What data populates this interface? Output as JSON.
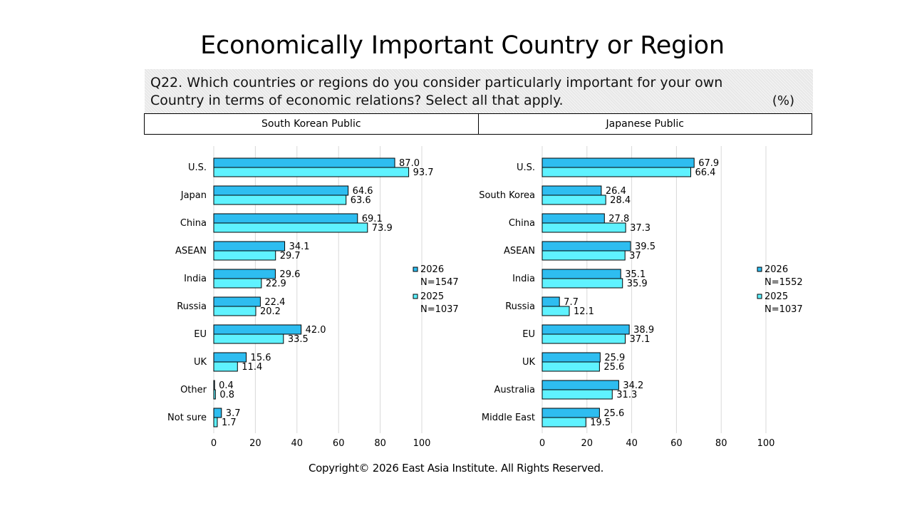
{
  "title": "Economically Important Country or Region",
  "question": {
    "text": "Q22. Which countries or regions do you consider particularly important for your own Country in terms of economic relations? Select all that apply.",
    "unit": "(%)"
  },
  "headers": [
    "South Korean Public",
    "Japanese Public"
  ],
  "footer": "Copyright© 2026 East Asia Institute. All Rights Reserved.",
  "colors": {
    "series_2026": "#2ebdf0",
    "series_2025": "#5ff2ff",
    "grid": "#d9d9d9",
    "outline": "#000000"
  },
  "chart_data": [
    {
      "type": "bar",
      "orientation": "horizontal",
      "categories": [
        "U.S.",
        "Japan",
        "China",
        "ASEAN",
        "India",
        "Russia",
        "EU",
        "UK",
        "Other",
        "Not sure"
      ],
      "series": [
        {
          "name": "2026",
          "sample": "N=1547",
          "values": [
            87.0,
            64.6,
            69.1,
            34.1,
            29.6,
            22.4,
            42.0,
            15.6,
            0.4,
            3.7
          ],
          "labels": [
            "87.0",
            "64.6",
            "69.1",
            "34.1",
            "29.6",
            "22.4",
            "42.0",
            "15.6",
            "0.4",
            "3.7"
          ]
        },
        {
          "name": "2025",
          "sample": "N=1037",
          "values": [
            93.7,
            63.6,
            73.9,
            29.7,
            22.9,
            20.2,
            33.5,
            11.4,
            0.8,
            1.7
          ],
          "labels": [
            "93.7",
            "63.6",
            "73.9",
            "29.7",
            "22.9",
            "20.2",
            "33.5",
            "11.4",
            "0.8",
            "1.7"
          ]
        }
      ],
      "xlim": [
        0,
        100
      ],
      "xticks": [
        "0",
        "20",
        "40",
        "60",
        "80",
        "100"
      ],
      "grid": true,
      "legend": "right"
    },
    {
      "type": "bar",
      "orientation": "horizontal",
      "categories": [
        "U.S.",
        "South Korea",
        "China",
        "ASEAN",
        "India",
        "Russia",
        "EU",
        "UK",
        "Australia",
        "Middle East"
      ],
      "series": [
        {
          "name": "2026",
          "sample": "N=1552",
          "values": [
            67.9,
            26.4,
            27.8,
            39.5,
            35.1,
            7.7,
            38.9,
            25.9,
            34.2,
            25.6
          ],
          "labels": [
            "67.9",
            "26.4",
            "27.8",
            "39.5",
            "35.1",
            "7.7",
            "38.9",
            "25.9",
            "34.2",
            "25.6"
          ]
        },
        {
          "name": "2025",
          "sample": "N=1037",
          "values": [
            66.4,
            28.4,
            37.3,
            37,
            35.9,
            12.1,
            37.1,
            25.6,
            31.3,
            19.5
          ],
          "labels": [
            "66.4",
            "28.4",
            "37.3",
            "37",
            "35.9",
            "12.1",
            "37.1",
            "25.6",
            "31.3",
            "19.5"
          ]
        }
      ],
      "xlim": [
        0,
        100
      ],
      "xticks": [
        "0",
        "20",
        "40",
        "60",
        "80",
        "100"
      ],
      "grid": true,
      "legend": "right"
    }
  ]
}
